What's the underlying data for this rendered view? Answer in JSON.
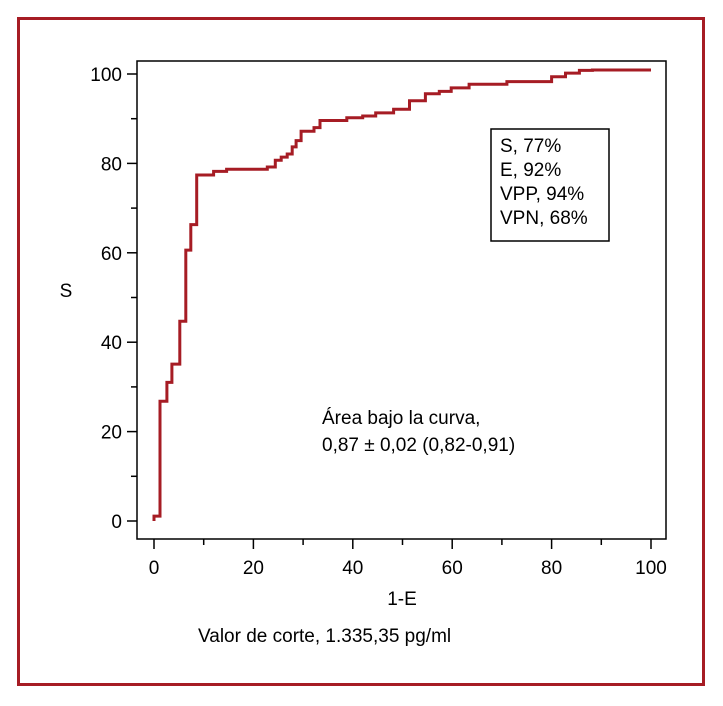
{
  "chart_data": {
    "type": "line",
    "xlabel": "1-E",
    "ylabel": "S",
    "xlim": [
      0,
      100
    ],
    "ylim": [
      0,
      100
    ],
    "x_ticks": [
      "0",
      "20",
      "40",
      "60",
      "80",
      "100"
    ],
    "y_ticks": [
      "0",
      "20",
      "40",
      "60",
      "80",
      "100"
    ],
    "grid": false,
    "line_color": "#a61c24",
    "series": [
      {
        "step": true,
        "x": [
          0,
          0,
          1.2,
          1.2,
          2.6,
          2.6,
          3.6,
          3.6,
          5.2,
          5.2,
          6.4,
          6.4,
          7.4,
          7.4,
          8.6,
          8.6,
          12.0,
          12.0,
          14.6,
          14.6,
          22.8,
          22.8,
          24.4,
          24.4,
          25.6,
          25.6,
          26.8,
          26.8,
          27.8,
          27.8,
          28.6,
          28.6,
          29.6,
          29.6,
          32.2,
          32.2,
          33.4,
          33.4,
          38.8,
          38.8,
          42.0,
          42.0,
          44.6,
          44.6,
          48.2,
          48.2,
          51.4,
          51.4,
          54.6,
          54.6,
          57.4,
          57.4,
          59.8,
          59.8,
          63.4,
          63.4,
          71.0,
          71.0,
          80.0,
          80.0,
          82.8,
          82.8,
          85.6,
          85.6,
          88.2,
          88.2,
          100.0
        ],
        "y": [
          0,
          1.1,
          1.1,
          26.8,
          26.8,
          31.0,
          31.0,
          35.1,
          35.1,
          44.7,
          44.7,
          60.6,
          60.6,
          66.3,
          66.3,
          77.4,
          77.4,
          78.2,
          78.2,
          78.7,
          78.7,
          79.2,
          79.2,
          80.7,
          80.7,
          81.4,
          81.4,
          82.1,
          82.1,
          83.7,
          83.7,
          85.1,
          85.1,
          87.2,
          87.2,
          88.0,
          88.0,
          89.6,
          89.6,
          90.2,
          90.2,
          90.6,
          90.6,
          91.3,
          91.3,
          92.1,
          92.1,
          94.0,
          94.0,
          95.6,
          95.6,
          96.1,
          96.1,
          96.9,
          96.9,
          97.7,
          97.7,
          98.3,
          98.3,
          99.4,
          99.4,
          100.2,
          100.2,
          100.8,
          100.8,
          100.9,
          100.9
        ]
      }
    ],
    "legend_box": [
      "S, 77%",
      "E, 92%",
      "VPP, 94%",
      "VPN, 68%"
    ],
    "annotation": [
      "Área bajo la curva,",
      "0,87 ± 0,02 (0,82-0,91)"
    ],
    "caption": "Valor de corte, 1.335,35 pg/ml"
  }
}
